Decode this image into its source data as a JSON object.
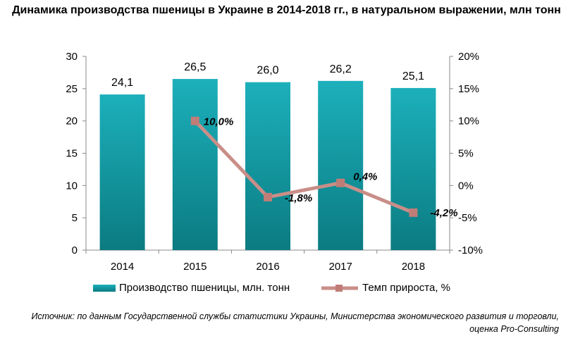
{
  "title": "Динамика производства пшеницы в Украине в 2014-2018 гг., в натуральном выражении, млн тонн",
  "source": "Источник: по данным Государственной службы статистики Украины, Министерства экономического развития и торговли, оценка Pro-Consulting",
  "colors": {
    "bar": "#1aa9b4",
    "bar_dark": "#0a7a80",
    "line": "#c98e88",
    "marker": "#c07d77"
  },
  "chart_data": {
    "type": "bar",
    "categories": [
      "2014",
      "2015",
      "2016",
      "2017",
      "2018"
    ],
    "series": [
      {
        "name": "Производство пшеницы, млн. тонн",
        "type": "bar",
        "axis": "left",
        "values": [
          24.1,
          26.5,
          26.0,
          26.2,
          25.1
        ],
        "labels": [
          "24,1",
          "26,5",
          "26,0",
          "26,2",
          "25,1"
        ]
      },
      {
        "name": "Темп прироста, %",
        "type": "line",
        "axis": "right",
        "values": [
          null,
          10.0,
          -1.8,
          0.4,
          -4.2
        ],
        "labels": [
          null,
          "10,0%",
          "-1,8%",
          "0,4%",
          "-4,2%"
        ]
      }
    ],
    "ylim": [
      0,
      30
    ],
    "yticks": [
      "0",
      "5",
      "10",
      "15",
      "20",
      "25",
      "30"
    ],
    "y2lim": [
      -10,
      20
    ],
    "y2ticks": [
      "-10%",
      "-5%",
      "0%",
      "5%",
      "10%",
      "15%",
      "20%"
    ],
    "legend": "bottom",
    "grid": false
  }
}
